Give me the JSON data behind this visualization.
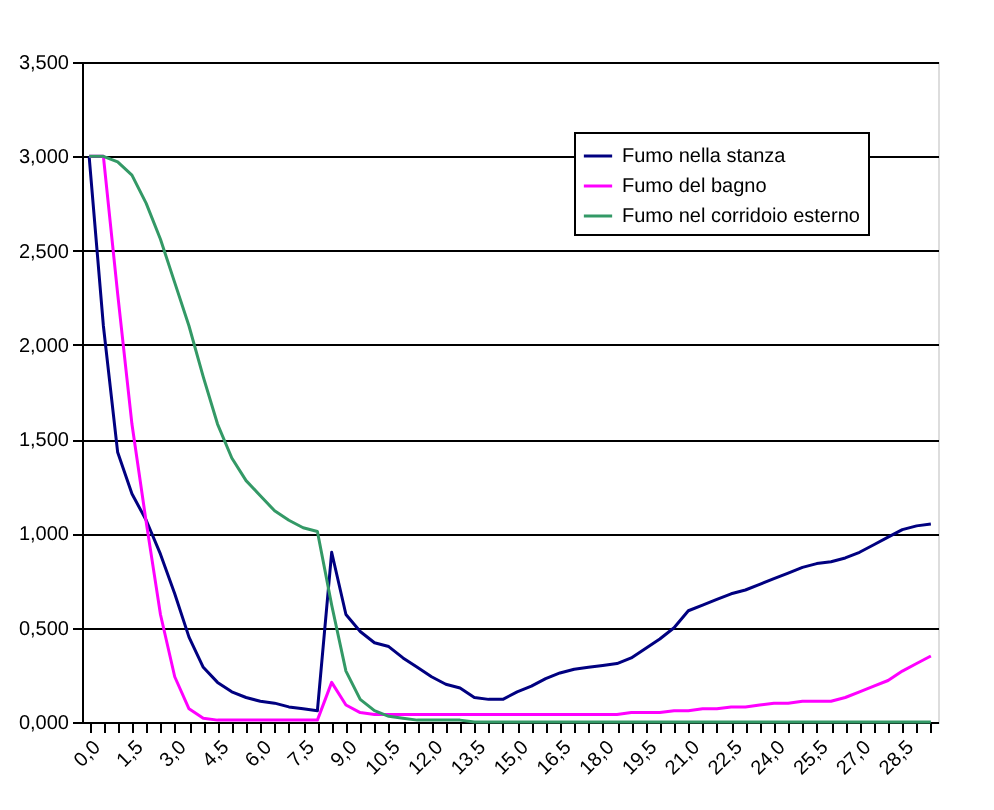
{
  "chart_data": {
    "type": "line",
    "categories": [
      "0,0",
      null,
      null,
      "1,5",
      null,
      null,
      "3,0",
      null,
      null,
      "4,5",
      null,
      null,
      "6,0",
      null,
      null,
      "7,5",
      null,
      null,
      "9,0",
      null,
      null,
      "10,5",
      null,
      null,
      "12,0",
      null,
      null,
      "13,5",
      null,
      null,
      "15,0",
      null,
      null,
      "16,5",
      null,
      null,
      "18,0",
      null,
      null,
      "19,5",
      null,
      null,
      "21,0",
      null,
      null,
      "22,5",
      null,
      null,
      "24,0",
      null,
      null,
      "25,5",
      null,
      null,
      "27,0",
      null,
      null,
      "28,5",
      null,
      null
    ],
    "series": [
      {
        "name": "Fumo nella stanza",
        "color": "#000080",
        "values": [
          3.0,
          2.1,
          1.43,
          1.21,
          1.07,
          0.89,
          0.68,
          0.45,
          0.29,
          0.21,
          0.16,
          0.13,
          0.11,
          0.1,
          0.08,
          0.07,
          0.06,
          0.9,
          0.57,
          0.48,
          0.42,
          0.4,
          0.34,
          0.29,
          0.24,
          0.2,
          0.18,
          0.13,
          0.12,
          0.12,
          0.16,
          0.19,
          0.23,
          0.26,
          0.28,
          0.29,
          0.3,
          0.31,
          0.34,
          0.39,
          0.44,
          0.5,
          0.59,
          0.62,
          0.65,
          0.68,
          0.7,
          0.73,
          0.76,
          0.79,
          0.82,
          0.84,
          0.85,
          0.87,
          0.9,
          0.94,
          0.98,
          1.02,
          1.04,
          1.05
        ]
      },
      {
        "name": "Fumo del bagno",
        "color": "#ff00ff",
        "values": [
          3.0,
          3.0,
          2.27,
          1.58,
          1.06,
          0.57,
          0.24,
          0.07,
          0.02,
          0.01,
          0.01,
          0.01,
          0.01,
          0.01,
          0.01,
          0.01,
          0.01,
          0.21,
          0.09,
          0.05,
          0.04,
          0.04,
          0.04,
          0.04,
          0.04,
          0.04,
          0.04,
          0.04,
          0.04,
          0.04,
          0.04,
          0.04,
          0.04,
          0.04,
          0.04,
          0.04,
          0.04,
          0.04,
          0.05,
          0.05,
          0.05,
          0.06,
          0.06,
          0.07,
          0.07,
          0.08,
          0.08,
          0.09,
          0.1,
          0.1,
          0.11,
          0.11,
          0.11,
          0.13,
          0.16,
          0.19,
          0.22,
          0.27,
          0.31,
          0.35
        ]
      },
      {
        "name": "Fumo nel corridoio esterno",
        "color": "#339966",
        "values": [
          3.0,
          3.0,
          2.97,
          2.9,
          2.75,
          2.56,
          2.33,
          2.1,
          1.83,
          1.58,
          1.4,
          1.28,
          1.2,
          1.12,
          1.07,
          1.03,
          1.01,
          0.62,
          0.27,
          0.12,
          0.06,
          0.03,
          0.02,
          0.01,
          0.01,
          0.01,
          0.01,
          0.0,
          0.0,
          0.0,
          0.0,
          0.0,
          0.0,
          0.0,
          0.0,
          0.0,
          0.0,
          0.0,
          0.0,
          0.0,
          0.0,
          0.0,
          0.0,
          0.0,
          0.0,
          0.0,
          0.0,
          0.0,
          0.0,
          0.0,
          0.0,
          0.0,
          0.0,
          0.0,
          0.0,
          0.0,
          0.0,
          0.0,
          0.0,
          0.0
        ]
      }
    ],
    "ylim": [
      0,
      3.5
    ],
    "yticks": [
      {
        "value": 0,
        "label": "0,000"
      },
      {
        "value": 0.5,
        "label": "0,500"
      },
      {
        "value": 1.0,
        "label": "1,000"
      },
      {
        "value": 1.5,
        "label": "1,500"
      },
      {
        "value": 2.0,
        "label": "2,000"
      },
      {
        "value": 2.5,
        "label": "2,500"
      },
      {
        "value": 3.0,
        "label": "3,000"
      },
      {
        "value": 3.5,
        "label": "3,500"
      }
    ],
    "grid": "y",
    "legend": "top right",
    "marker": "none",
    "line_style": "solid"
  }
}
